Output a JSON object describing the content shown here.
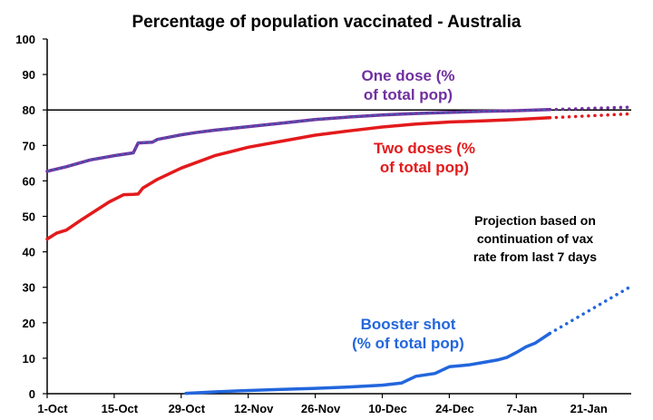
{
  "chart_data": {
    "type": "line",
    "title": "Percentage of population vaccinated - Australia",
    "xlabel": "",
    "ylabel": "",
    "ylim": [
      0,
      100
    ],
    "yticks": [
      "0",
      "10",
      "20",
      "30",
      "40",
      "50",
      "60",
      "70",
      "80",
      "90",
      "100"
    ],
    "xticks": [
      "1-Oct",
      "15-Oct",
      "29-Oct",
      "12-Nov",
      "26-Nov",
      "10-Dec",
      "24-Dec",
      "7-Jan",
      "21-Jan"
    ],
    "reference_line": {
      "value": 80,
      "color": "#000000"
    },
    "grid": false,
    "last_actual": "14-Jan",
    "projection_end": "31-Jan",
    "projection_note": [
      "Projection based on",
      "continuation of vax",
      "rate from last 7 days"
    ],
    "series": [
      {
        "name": "One dose (% of total pop)",
        "label_lines": [
          "One dose (%",
          "of total pop)"
        ],
        "color": "#7030a0",
        "dash_color": "#2e75b6",
        "x": [
          "1-Oct",
          "5-Oct",
          "10-Oct",
          "15-Oct",
          "19-Oct",
          "20-Oct",
          "23-Oct",
          "24-Oct",
          "26-Oct",
          "29-Oct",
          "1-Nov",
          "5-Nov",
          "12-Nov",
          "19-Nov",
          "26-Nov",
          "3-Dec",
          "10-Dec",
          "17-Dec",
          "24-Dec",
          "31-Dec",
          "7-Jan",
          "14-Jan"
        ],
        "values": [
          62.7,
          64.0,
          65.9,
          67.1,
          67.9,
          70.7,
          70.9,
          71.7,
          72.2,
          73.0,
          73.6,
          74.3,
          75.3,
          76.3,
          77.3,
          78.0,
          78.6,
          79.0,
          79.3,
          79.6,
          79.8,
          80.1
        ],
        "projection": {
          "x": [
            "14-Jan",
            "31-Jan"
          ],
          "values": [
            80.1,
            80.8
          ]
        }
      },
      {
        "name": "Two doses (% of total pop)",
        "label_lines": [
          "Two doses (%",
          "of total pop)"
        ],
        "color": "#e31a1c",
        "x": [
          "1-Oct",
          "3-Oct",
          "5-Oct",
          "8-Oct",
          "11-Oct",
          "14-Oct",
          "17-Oct",
          "19-Oct",
          "20-Oct",
          "21-Oct",
          "24-Oct",
          "29-Oct",
          "5-Nov",
          "12-Nov",
          "19-Nov",
          "26-Nov",
          "3-Dec",
          "10-Dec",
          "17-Dec",
          "24-Dec",
          "31-Dec",
          "7-Jan",
          "14-Jan"
        ],
        "values": [
          43.6,
          45.3,
          46.1,
          48.9,
          51.5,
          54.1,
          56.1,
          56.2,
          56.3,
          58.0,
          60.4,
          63.6,
          67.1,
          69.5,
          71.2,
          72.9,
          74.1,
          75.2,
          76.0,
          76.6,
          76.9,
          77.3,
          77.8
        ],
        "projection": {
          "x": [
            "14-Jan",
            "31-Jan"
          ],
          "values": [
            77.8,
            78.9
          ]
        }
      },
      {
        "name": "Booster shot (% of total pop)",
        "label_lines": [
          "Booster shot",
          "(% of total pop)"
        ],
        "color": "#2266dd",
        "x": [
          "30-Oct",
          "5-Nov",
          "12-Nov",
          "19-Nov",
          "26-Nov",
          "3-Dec",
          "10-Dec",
          "14-Dec",
          "17-Dec",
          "21-Dec",
          "24-Dec",
          "28-Dec",
          "31-Dec",
          "3-Jan",
          "5-Jan",
          "7-Jan",
          "9-Jan",
          "11-Jan",
          "14-Jan"
        ],
        "values": [
          0.1,
          0.5,
          0.9,
          1.2,
          1.5,
          1.9,
          2.4,
          3.0,
          4.9,
          5.7,
          7.6,
          8.1,
          8.8,
          9.5,
          10.2,
          11.6,
          13.2,
          14.3,
          17.0
        ],
        "projection": {
          "x": [
            "14-Jan",
            "31-Jan"
          ],
          "values": [
            17.0,
            30.3
          ]
        }
      }
    ]
  }
}
